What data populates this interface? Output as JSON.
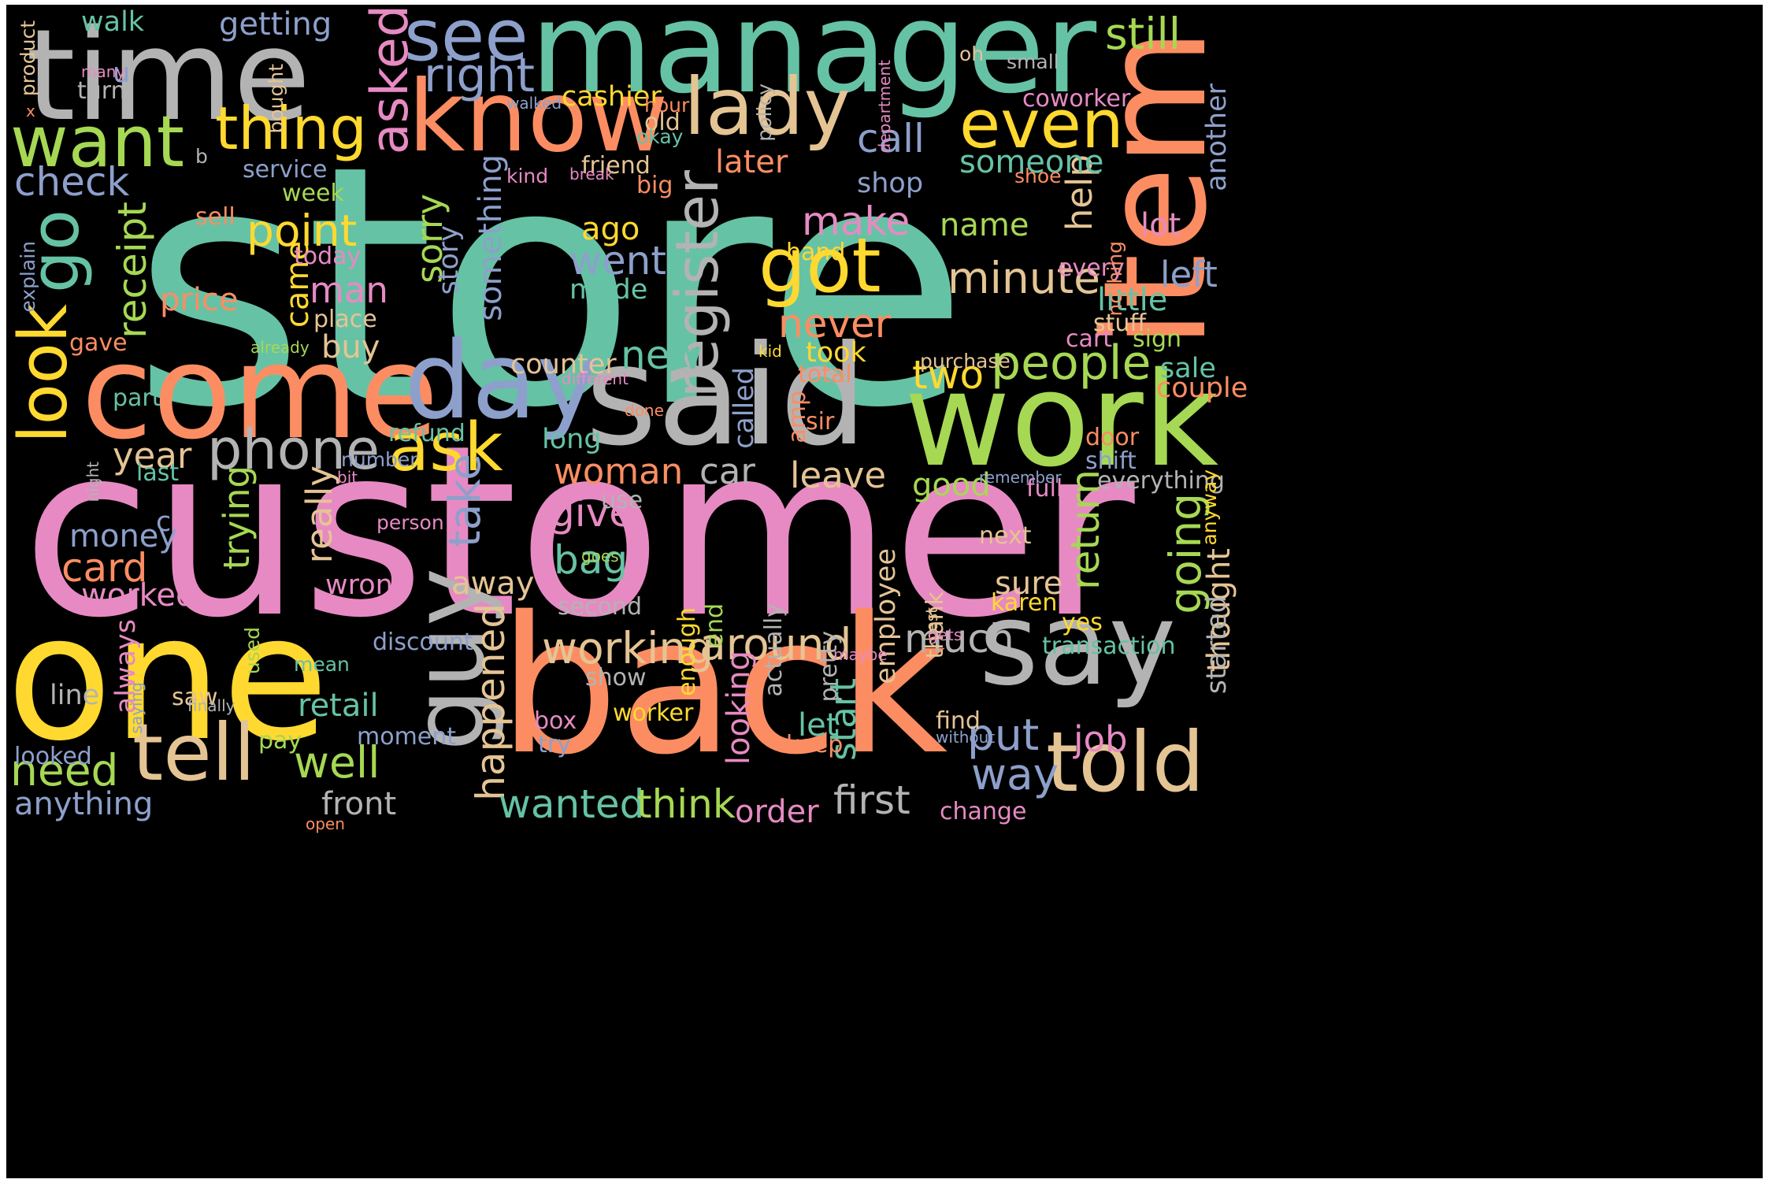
{
  "palette": {
    "teal": "#66c2a5",
    "orange": "#fc8d62",
    "blue": "#8da0cb",
    "pink": "#e78ac3",
    "green": "#a6d854",
    "yellow": "#ffd92f",
    "tan": "#e5c494",
    "gray": "#b3b3b3",
    "background": "#000000",
    "frame": "#ffffff"
  },
  "words": [
    {
      "text": "store",
      "color": "teal"
    },
    {
      "text": "customer",
      "color": "pink"
    },
    {
      "text": "manager",
      "color": "teal"
    },
    {
      "text": "back",
      "color": "orange"
    },
    {
      "text": "one",
      "color": "yellow"
    },
    {
      "text": "time",
      "color": "gray"
    },
    {
      "text": "said",
      "color": "gray"
    },
    {
      "text": "item",
      "color": "orange"
    },
    {
      "text": "come",
      "color": "orange"
    },
    {
      "text": "work",
      "color": "green"
    },
    {
      "text": "say",
      "color": "gray"
    },
    {
      "text": "know",
      "color": "orange"
    },
    {
      "text": "guy",
      "color": "gray"
    },
    {
      "text": "day",
      "color": "blue"
    },
    {
      "text": "told",
      "color": "tan"
    },
    {
      "text": "lady",
      "color": "tan"
    },
    {
      "text": "tell",
      "color": "tan"
    },
    {
      "text": "want",
      "color": "green"
    },
    {
      "text": "go",
      "color": "teal"
    },
    {
      "text": "see",
      "color": "blue"
    },
    {
      "text": "got",
      "color": "yellow"
    },
    {
      "text": "even",
      "color": "yellow"
    },
    {
      "text": "ask",
      "color": "yellow"
    },
    {
      "text": "register",
      "color": "gray"
    },
    {
      "text": "look",
      "color": "yellow"
    },
    {
      "text": "phone",
      "color": "gray"
    },
    {
      "text": "thing",
      "color": "yellow"
    },
    {
      "text": "asked",
      "color": "pink"
    },
    {
      "text": "right",
      "color": "blue"
    },
    {
      "text": "still",
      "color": "green"
    },
    {
      "text": "people",
      "color": "green"
    },
    {
      "text": "working",
      "color": "tan"
    },
    {
      "text": "around",
      "color": "tan"
    },
    {
      "text": "point",
      "color": "yellow"
    },
    {
      "text": "receipt",
      "color": "green"
    },
    {
      "text": "check",
      "color": "blue"
    },
    {
      "text": "minute",
      "color": "tan"
    },
    {
      "text": "call",
      "color": "blue"
    },
    {
      "text": "make",
      "color": "pink"
    },
    {
      "text": "happened",
      "color": "tan"
    },
    {
      "text": "take",
      "color": "blue"
    },
    {
      "text": "wanted",
      "color": "teal"
    },
    {
      "text": "think",
      "color": "green"
    },
    {
      "text": "first",
      "color": "gray"
    },
    {
      "text": "need",
      "color": "green"
    },
    {
      "text": "well",
      "color": "green"
    },
    {
      "text": "put",
      "color": "blue"
    },
    {
      "text": "way",
      "color": "blue"
    },
    {
      "text": "much",
      "color": "gray"
    },
    {
      "text": "return",
      "color": "green"
    },
    {
      "text": "going",
      "color": "green"
    },
    {
      "text": "give",
      "color": "pink"
    },
    {
      "text": "bag",
      "color": "teal"
    },
    {
      "text": "card",
      "color": "orange"
    },
    {
      "text": "new",
      "color": "teal"
    },
    {
      "text": "went",
      "color": "blue"
    },
    {
      "text": "two",
      "color": "yellow"
    },
    {
      "text": "never",
      "color": "orange"
    },
    {
      "text": "something",
      "color": "blue"
    },
    {
      "text": "sorry",
      "color": "green"
    },
    {
      "text": "story",
      "color": "blue"
    },
    {
      "text": "came",
      "color": "yellow"
    },
    {
      "text": "man",
      "color": "pink"
    },
    {
      "text": "year",
      "color": "tan"
    },
    {
      "text": "woman",
      "color": "orange"
    },
    {
      "text": "leave",
      "color": "tan"
    },
    {
      "text": "car",
      "color": "gray"
    },
    {
      "text": "really",
      "color": "tan"
    },
    {
      "text": "trying",
      "color": "green"
    },
    {
      "text": "money",
      "color": "blue"
    },
    {
      "text": "worked",
      "color": "pink"
    },
    {
      "text": "help",
      "color": "tan"
    },
    {
      "text": "left",
      "color": "blue"
    },
    {
      "text": "start",
      "color": "teal"
    },
    {
      "text": "job",
      "color": "pink"
    },
    {
      "text": "retail",
      "color": "teal"
    },
    {
      "text": "someone",
      "color": "teal"
    },
    {
      "text": "another",
      "color": "blue"
    },
    {
      "text": "later",
      "color": "orange"
    },
    {
      "text": "shop",
      "color": "blue"
    },
    {
      "text": "name",
      "color": "green"
    },
    {
      "text": "lot",
      "color": "pink"
    },
    {
      "text": "ago",
      "color": "yellow"
    },
    {
      "text": "made",
      "color": "teal"
    },
    {
      "text": "little",
      "color": "teal"
    },
    {
      "text": "price",
      "color": "orange"
    },
    {
      "text": "buy",
      "color": "tan"
    },
    {
      "text": "took",
      "color": "yellow"
    },
    {
      "text": "sure",
      "color": "tan"
    },
    {
      "text": "thought",
      "color": "tan"
    },
    {
      "text": "started",
      "color": "gray"
    },
    {
      "text": "away",
      "color": "tan"
    },
    {
      "text": "called",
      "color": "blue"
    },
    {
      "text": "employee",
      "color": "tan"
    },
    {
      "text": "let",
      "color": "teal"
    },
    {
      "text": "order",
      "color": "pink"
    },
    {
      "text": "front",
      "color": "gray"
    },
    {
      "text": "anything",
      "color": "blue"
    },
    {
      "text": "looking",
      "color": "pink"
    },
    {
      "text": "good",
      "color": "green"
    },
    {
      "text": "sale",
      "color": "teal"
    },
    {
      "text": "couple",
      "color": "orange"
    },
    {
      "text": "cashier",
      "color": "yellow"
    },
    {
      "text": "coworker",
      "color": "pink"
    },
    {
      "text": "old",
      "color": "tan"
    },
    {
      "text": "getting",
      "color": "blue"
    },
    {
      "text": "walk",
      "color": "teal"
    },
    {
      "text": "u",
      "color": "blue"
    },
    {
      "text": "turn",
      "color": "gray"
    },
    {
      "text": "service",
      "color": "blue"
    },
    {
      "text": "week",
      "color": "green"
    },
    {
      "text": "sell",
      "color": "orange"
    },
    {
      "text": "today",
      "color": "pink"
    },
    {
      "text": "place",
      "color": "tan"
    },
    {
      "text": "gave",
      "color": "orange"
    },
    {
      "text": "part",
      "color": "teal"
    },
    {
      "text": "last",
      "color": "teal"
    },
    {
      "text": "c",
      "color": "blue"
    },
    {
      "text": "wrong",
      "color": "pink"
    },
    {
      "text": "counter",
      "color": "tan"
    },
    {
      "text": "refund",
      "color": "teal"
    },
    {
      "text": "long",
      "color": "teal"
    },
    {
      "text": "use",
      "color": "gray"
    },
    {
      "text": "second",
      "color": "gray"
    },
    {
      "text": "discount",
      "color": "blue"
    },
    {
      "text": "line",
      "color": "gray"
    },
    {
      "text": "saw",
      "color": "tan"
    },
    {
      "text": "pay",
      "color": "green"
    },
    {
      "text": "looked",
      "color": "blue"
    },
    {
      "text": "box",
      "color": "pink"
    },
    {
      "text": "try",
      "color": "blue"
    },
    {
      "text": "worker",
      "color": "yellow"
    },
    {
      "text": "moment",
      "color": "blue"
    },
    {
      "text": "show",
      "color": "gray"
    },
    {
      "text": "find",
      "color": "tan"
    },
    {
      "text": "keep",
      "color": "orange"
    },
    {
      "text": "next",
      "color": "tan"
    },
    {
      "text": "karen",
      "color": "yellow"
    },
    {
      "text": "yes",
      "color": "yellow"
    },
    {
      "text": "transaction",
      "color": "teal"
    },
    {
      "text": "everything",
      "color": "gray"
    },
    {
      "text": "full",
      "color": "pink"
    },
    {
      "text": "door",
      "color": "orange"
    },
    {
      "text": "shift",
      "color": "blue"
    },
    {
      "text": "anyway",
      "color": "yellow"
    },
    {
      "text": "sign",
      "color": "green"
    },
    {
      "text": "cart",
      "color": "pink"
    },
    {
      "text": "stuff",
      "color": "tan"
    },
    {
      "text": "every",
      "color": "pink"
    },
    {
      "text": "nothing",
      "color": "orange"
    },
    {
      "text": "hand",
      "color": "yellow"
    },
    {
      "text": "amp",
      "color": "orange"
    },
    {
      "text": "total",
      "color": "orange"
    },
    {
      "text": "sir",
      "color": "orange"
    },
    {
      "text": "purchase",
      "color": "tan"
    },
    {
      "text": "kid",
      "color": "yellow"
    },
    {
      "text": "enough",
      "color": "yellow"
    },
    {
      "text": "end",
      "color": "green"
    },
    {
      "text": "actually",
      "color": "gray"
    },
    {
      "text": "pretty",
      "color": "gray"
    },
    {
      "text": "thank",
      "color": "tan"
    },
    {
      "text": "best",
      "color": "tan"
    },
    {
      "text": "gets",
      "color": "pink"
    },
    {
      "text": "without",
      "color": "blue"
    },
    {
      "text": "change",
      "color": "pink"
    },
    {
      "text": "friend",
      "color": "tan"
    },
    {
      "text": "kind",
      "color": "pink"
    },
    {
      "text": "break",
      "color": "pink"
    },
    {
      "text": "big",
      "color": "orange"
    },
    {
      "text": "okay",
      "color": "teal"
    },
    {
      "text": "hour",
      "color": "orange"
    },
    {
      "text": "walked",
      "color": "blue"
    },
    {
      "text": "policy",
      "color": "gray"
    },
    {
      "text": "department",
      "color": "pink"
    },
    {
      "text": "oh",
      "color": "tan"
    },
    {
      "text": "small",
      "color": "gray"
    },
    {
      "text": "shoe",
      "color": "orange"
    },
    {
      "text": "bought",
      "color": "tan"
    },
    {
      "text": "many",
      "color": "pink"
    },
    {
      "text": "product",
      "color": "tan"
    },
    {
      "text": "x",
      "color": "orange"
    },
    {
      "text": "b",
      "color": "gray"
    },
    {
      "text": "explain",
      "color": "blue"
    },
    {
      "text": "already",
      "color": "green"
    },
    {
      "text": "night",
      "color": "gray"
    },
    {
      "text": "number",
      "color": "blue"
    },
    {
      "text": "bit",
      "color": "pink"
    },
    {
      "text": "person",
      "color": "pink"
    },
    {
      "text": "goes",
      "color": "green"
    },
    {
      "text": "always",
      "color": "pink"
    },
    {
      "text": "used",
      "color": "green"
    },
    {
      "text": "saying",
      "color": "blue"
    },
    {
      "text": "finally",
      "color": "gray"
    },
    {
      "text": "mean",
      "color": "teal"
    },
    {
      "text": "open",
      "color": "orange"
    },
    {
      "text": "different",
      "color": "pink"
    },
    {
      "text": "done",
      "color": "orange"
    },
    {
      "text": "remember",
      "color": "blue"
    },
    {
      "text": "maybe",
      "color": "pink"
    },
    {
      "text": "ok",
      "color": "gray"
    }
  ]
}
